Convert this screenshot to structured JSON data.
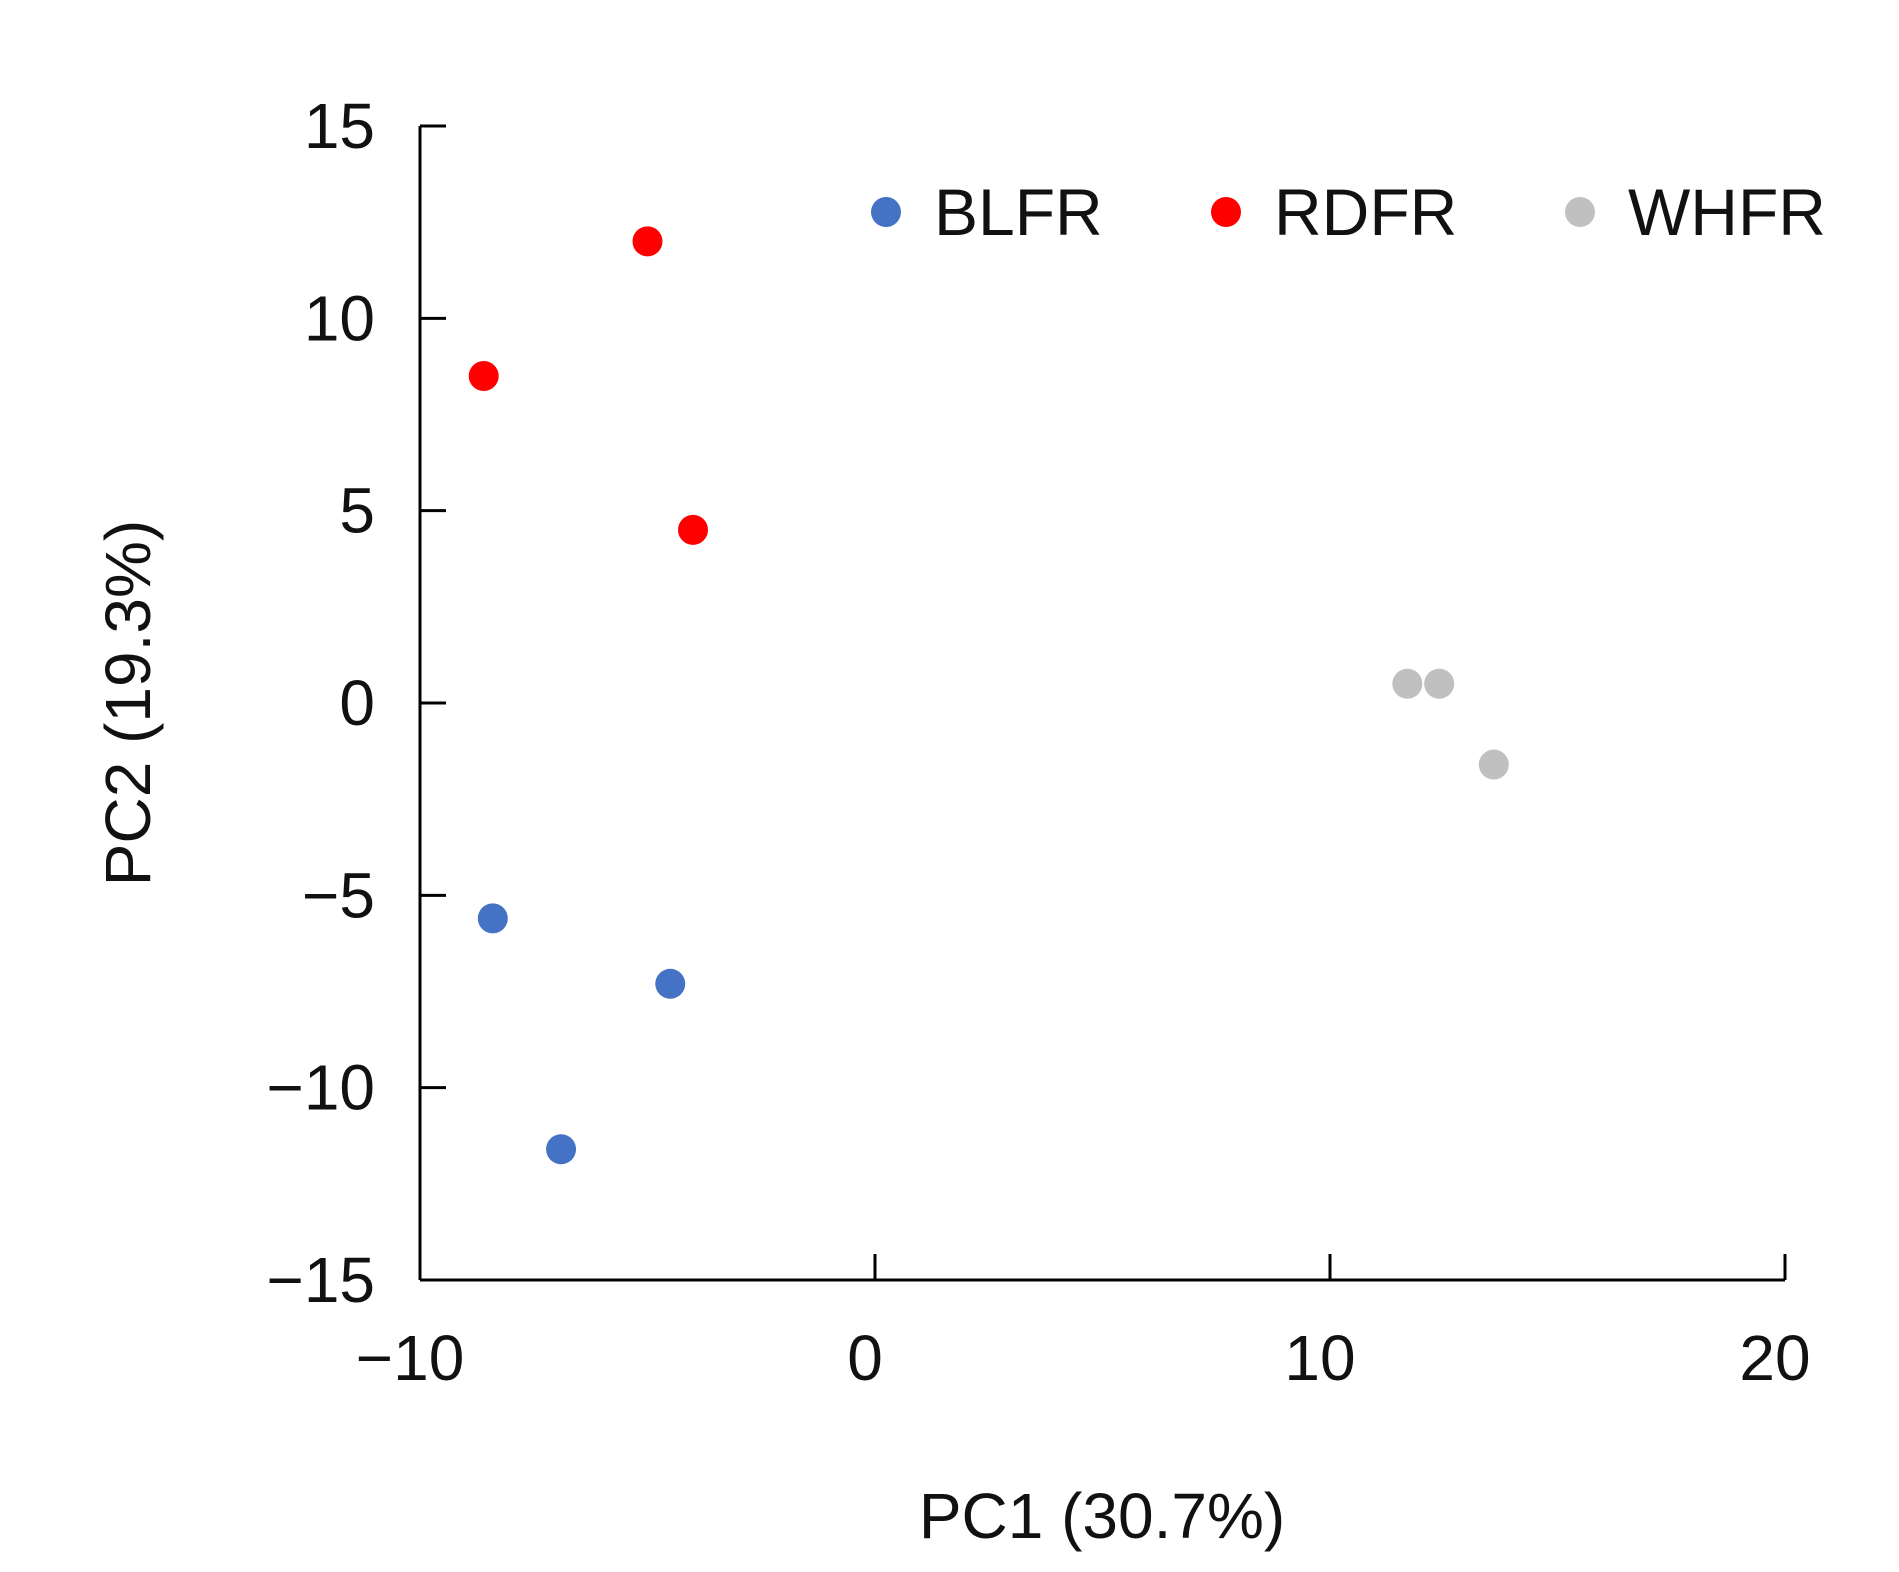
{
  "chart_data": {
    "type": "scatter",
    "title": "",
    "xlabel": "PC1 (30.7%)",
    "ylabel": "PC2 (19.3%)",
    "xlim": [
      -10,
      20
    ],
    "ylim": [
      -15,
      15
    ],
    "x_ticks": [
      -10,
      0,
      10,
      20
    ],
    "y_ticks": [
      15,
      10,
      5,
      0,
      -5,
      -10,
      -15
    ],
    "x_tick_labels": [
      "−10",
      "0",
      "10",
      "20"
    ],
    "y_tick_labels": [
      "15",
      "10",
      "5",
      "0",
      "−5",
      "−10",
      "−15"
    ],
    "grid": false,
    "legend_position": "top",
    "series": [
      {
        "name": "BLFR",
        "color": "#4472C4",
        "points": [
          {
            "x": -8.4,
            "y": -5.6
          },
          {
            "x": -4.5,
            "y": -7.3
          },
          {
            "x": -6.9,
            "y": -11.6
          }
        ]
      },
      {
        "name": "RDFR",
        "color": "#FF0000",
        "points": [
          {
            "x": -5.0,
            "y": 12.0
          },
          {
            "x": -8.6,
            "y": 8.5
          },
          {
            "x": -4.0,
            "y": 4.5
          }
        ]
      },
      {
        "name": "WHFR",
        "color": "#C0C0C0",
        "points": [
          {
            "x": 11.7,
            "y": 0.5
          },
          {
            "x": 12.4,
            "y": 0.5
          },
          {
            "x": 13.6,
            "y": -1.6
          }
        ]
      }
    ]
  }
}
